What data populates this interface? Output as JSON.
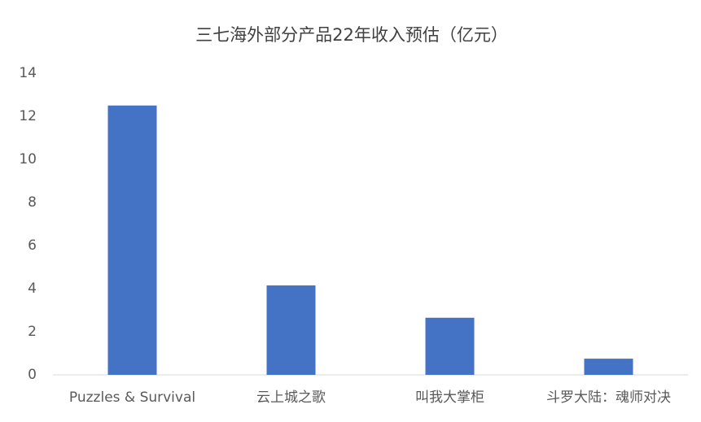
{
  "chart_data": {
    "type": "bar",
    "title": "三七海外部分产品22年收入预估（亿元）",
    "categories": [
      "Puzzles & Survival",
      "云上城之歌",
      "叫我大掌柜",
      "斗罗大陆：魂师对决"
    ],
    "values": [
      12.5,
      4.15,
      2.65,
      0.75
    ],
    "color": "#4472c4",
    "ylim": [
      0,
      14
    ],
    "yticks": [
      0,
      2,
      4,
      6,
      8,
      10,
      12,
      14
    ],
    "grid": false
  }
}
